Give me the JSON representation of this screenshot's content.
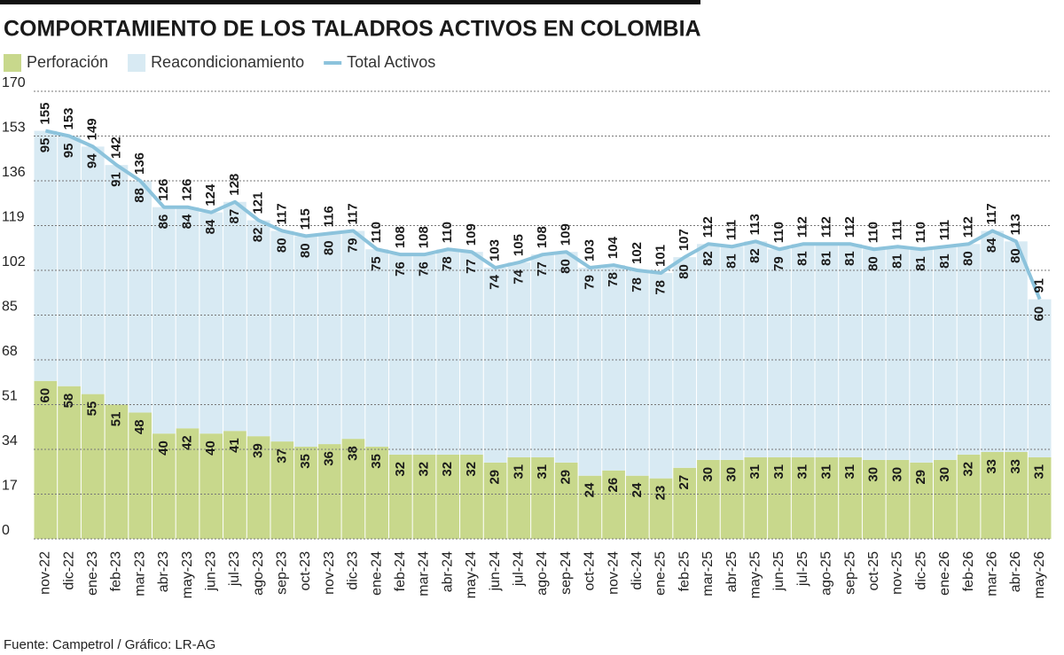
{
  "chart_data": {
    "type": "bar",
    "stacked": true,
    "title": "COMPORTAMIENTO DE LOS TALADROS ACTIVOS EN COLOMBIA",
    "source": "Fuente: Campetrol / Gráfico: LR-AG",
    "categories": [
      "nov-22",
      "dic-22",
      "ene-23",
      "feb-23",
      "mar-23",
      "abr-23",
      "may-23",
      "jun-23",
      "jul-23",
      "ago-23",
      "sep-23",
      "oct-23",
      "nov-23",
      "dic-23",
      "ene-24",
      "feb-24",
      "mar-24",
      "abr-24",
      "may-24",
      "jun-24",
      "jul-24",
      "ago-24",
      "sep-24",
      "oct-24",
      "nov-24",
      "dic-24",
      "ene-25",
      "feb-25",
      "mar-25",
      "abr-25",
      "may-25",
      "jun-25",
      "jul-25",
      "ago-25",
      "sep-25",
      "oct-25",
      "nov-25",
      "dic-25",
      "ene-26",
      "feb-26",
      "mar-26",
      "abr-26",
      "may-26"
    ],
    "series": [
      {
        "name": "Perforación",
        "color": "#c8d88c",
        "values": [
          60,
          58,
          55,
          51,
          48,
          40,
          42,
          40,
          41,
          39,
          37,
          35,
          36,
          38,
          35,
          32,
          32,
          32,
          32,
          29,
          31,
          31,
          29,
          24,
          26,
          24,
          23,
          27,
          30,
          30,
          31,
          31,
          31,
          31,
          31,
          30,
          30,
          29,
          30,
          32,
          33,
          33,
          31
        ]
      },
      {
        "name": "Reacondicionamiento",
        "color": "#d8eaf3",
        "values": [
          95,
          95,
          94,
          91,
          88,
          86,
          84,
          84,
          87,
          82,
          80,
          80,
          80,
          79,
          75,
          76,
          76,
          78,
          77,
          74,
          74,
          77,
          80,
          79,
          78,
          78,
          78,
          80,
          82,
          81,
          82,
          79,
          81,
          81,
          81,
          80,
          81,
          81,
          81,
          80,
          84,
          80,
          60
        ]
      },
      {
        "name": "Total Activos",
        "type": "line",
        "color": "#8cc3dc",
        "values": [
          155,
          153,
          149,
          142,
          136,
          126,
          126,
          124,
          128,
          121,
          117,
          115,
          116,
          117,
          110,
          108,
          108,
          110,
          109,
          103,
          105,
          108,
          109,
          103,
          104,
          102,
          101,
          107,
          112,
          111,
          113,
          110,
          112,
          112,
          112,
          110,
          111,
          110,
          111,
          112,
          117,
          113,
          91
        ]
      }
    ],
    "ylim": [
      0,
      170
    ],
    "yticks": [
      0,
      17,
      34,
      51,
      68,
      85,
      102,
      119,
      136,
      153,
      170
    ],
    "grid": true
  }
}
